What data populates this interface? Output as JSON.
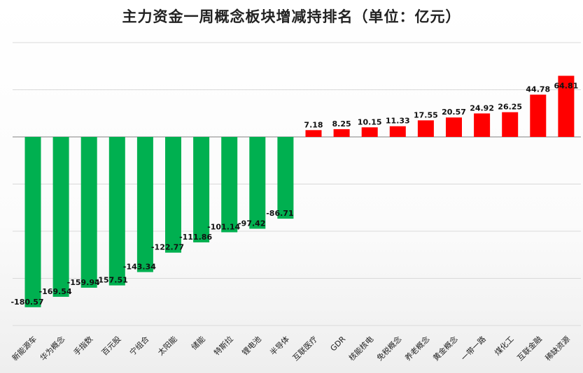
{
  "chart_data": {
    "type": "bar",
    "title": "主力资金一周概念板块增减持排名（单位：亿元）",
    "xlabel": "",
    "ylabel": "",
    "grid": true,
    "ylim": [
      -200,
      100
    ],
    "categories": [
      "新能源车",
      "华为概念",
      "手指数",
      "百元股",
      "宁组合",
      "太阳能",
      "储能",
      "特斯拉",
      "锂电池",
      "半导体",
      "互联医疗",
      "GDR",
      "核能核电",
      "免税概念",
      "养老概念",
      "黄金概念",
      "一带一路",
      "煤化工",
      "互联金融",
      "稀缺资源"
    ],
    "values": [
      -180.57,
      -169.54,
      -159.94,
      -157.51,
      -143.34,
      -122.77,
      -111.86,
      -101.14,
      -97.42,
      -86.71,
      7.18,
      8.25,
      10.15,
      11.33,
      17.55,
      20.57,
      24.92,
      26.25,
      44.78,
      64.81
    ],
    "value_labels": [
      "-180.57",
      "-169.54",
      "-159.94",
      "-157.51",
      "-143.34",
      "-122.77",
      "-111.86",
      "-101.14",
      "-97.42",
      "-86.71",
      "7.18",
      "8.25",
      "10.15",
      "11.33",
      "17.55",
      "20.57",
      "24.92",
      "26.25",
      "44.78",
      "64.81"
    ],
    "colors": {
      "negative": "#00b050",
      "positive": "#ff0000",
      "grid": "#d9d9d9"
    }
  }
}
